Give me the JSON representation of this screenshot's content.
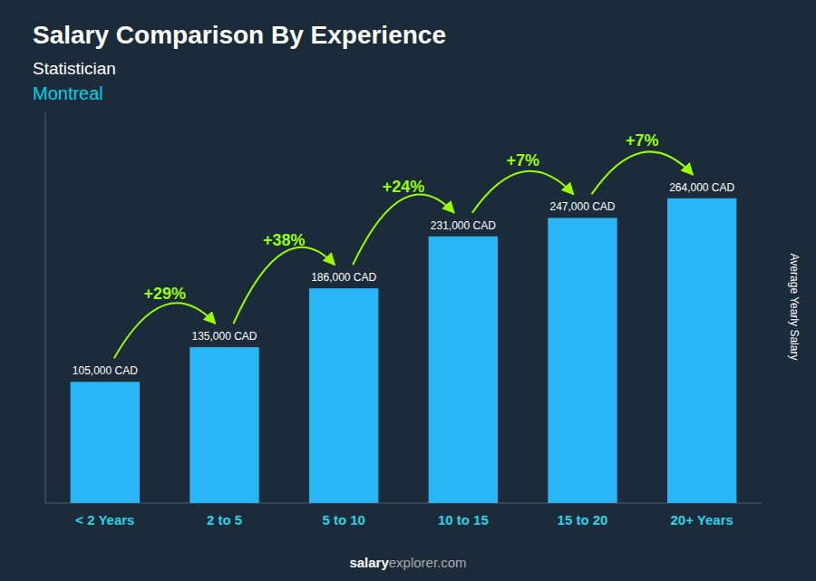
{
  "chart_data": {
    "type": "bar",
    "title": "Salary Comparison By Experience",
    "subtitle": [
      "Statistician",
      "Montreal"
    ],
    "ylabel": "Average Yearly Salary",
    "footer": [
      "salary",
      "explorer.com"
    ],
    "categories": [
      "< 2 Years",
      "2 to 5",
      "5 to 10",
      "10 to 15",
      "15 to 20",
      "20+ Years"
    ],
    "values": [
      105000,
      135000,
      186000,
      231000,
      247000,
      264000
    ],
    "value_labels": [
      "105,000 CAD",
      "135,000 CAD",
      "186,000 CAD",
      "231,000 CAD",
      "247,000 CAD",
      "264,000 CAD"
    ],
    "data_labels": true,
    "annotations": [
      "+29%",
      "+38%",
      "+24%",
      "+7%",
      "+7%"
    ],
    "color": "#29b6f6",
    "ylim": [
      0,
      340000
    ],
    "grid": false,
    "tick_labels": "x"
  }
}
